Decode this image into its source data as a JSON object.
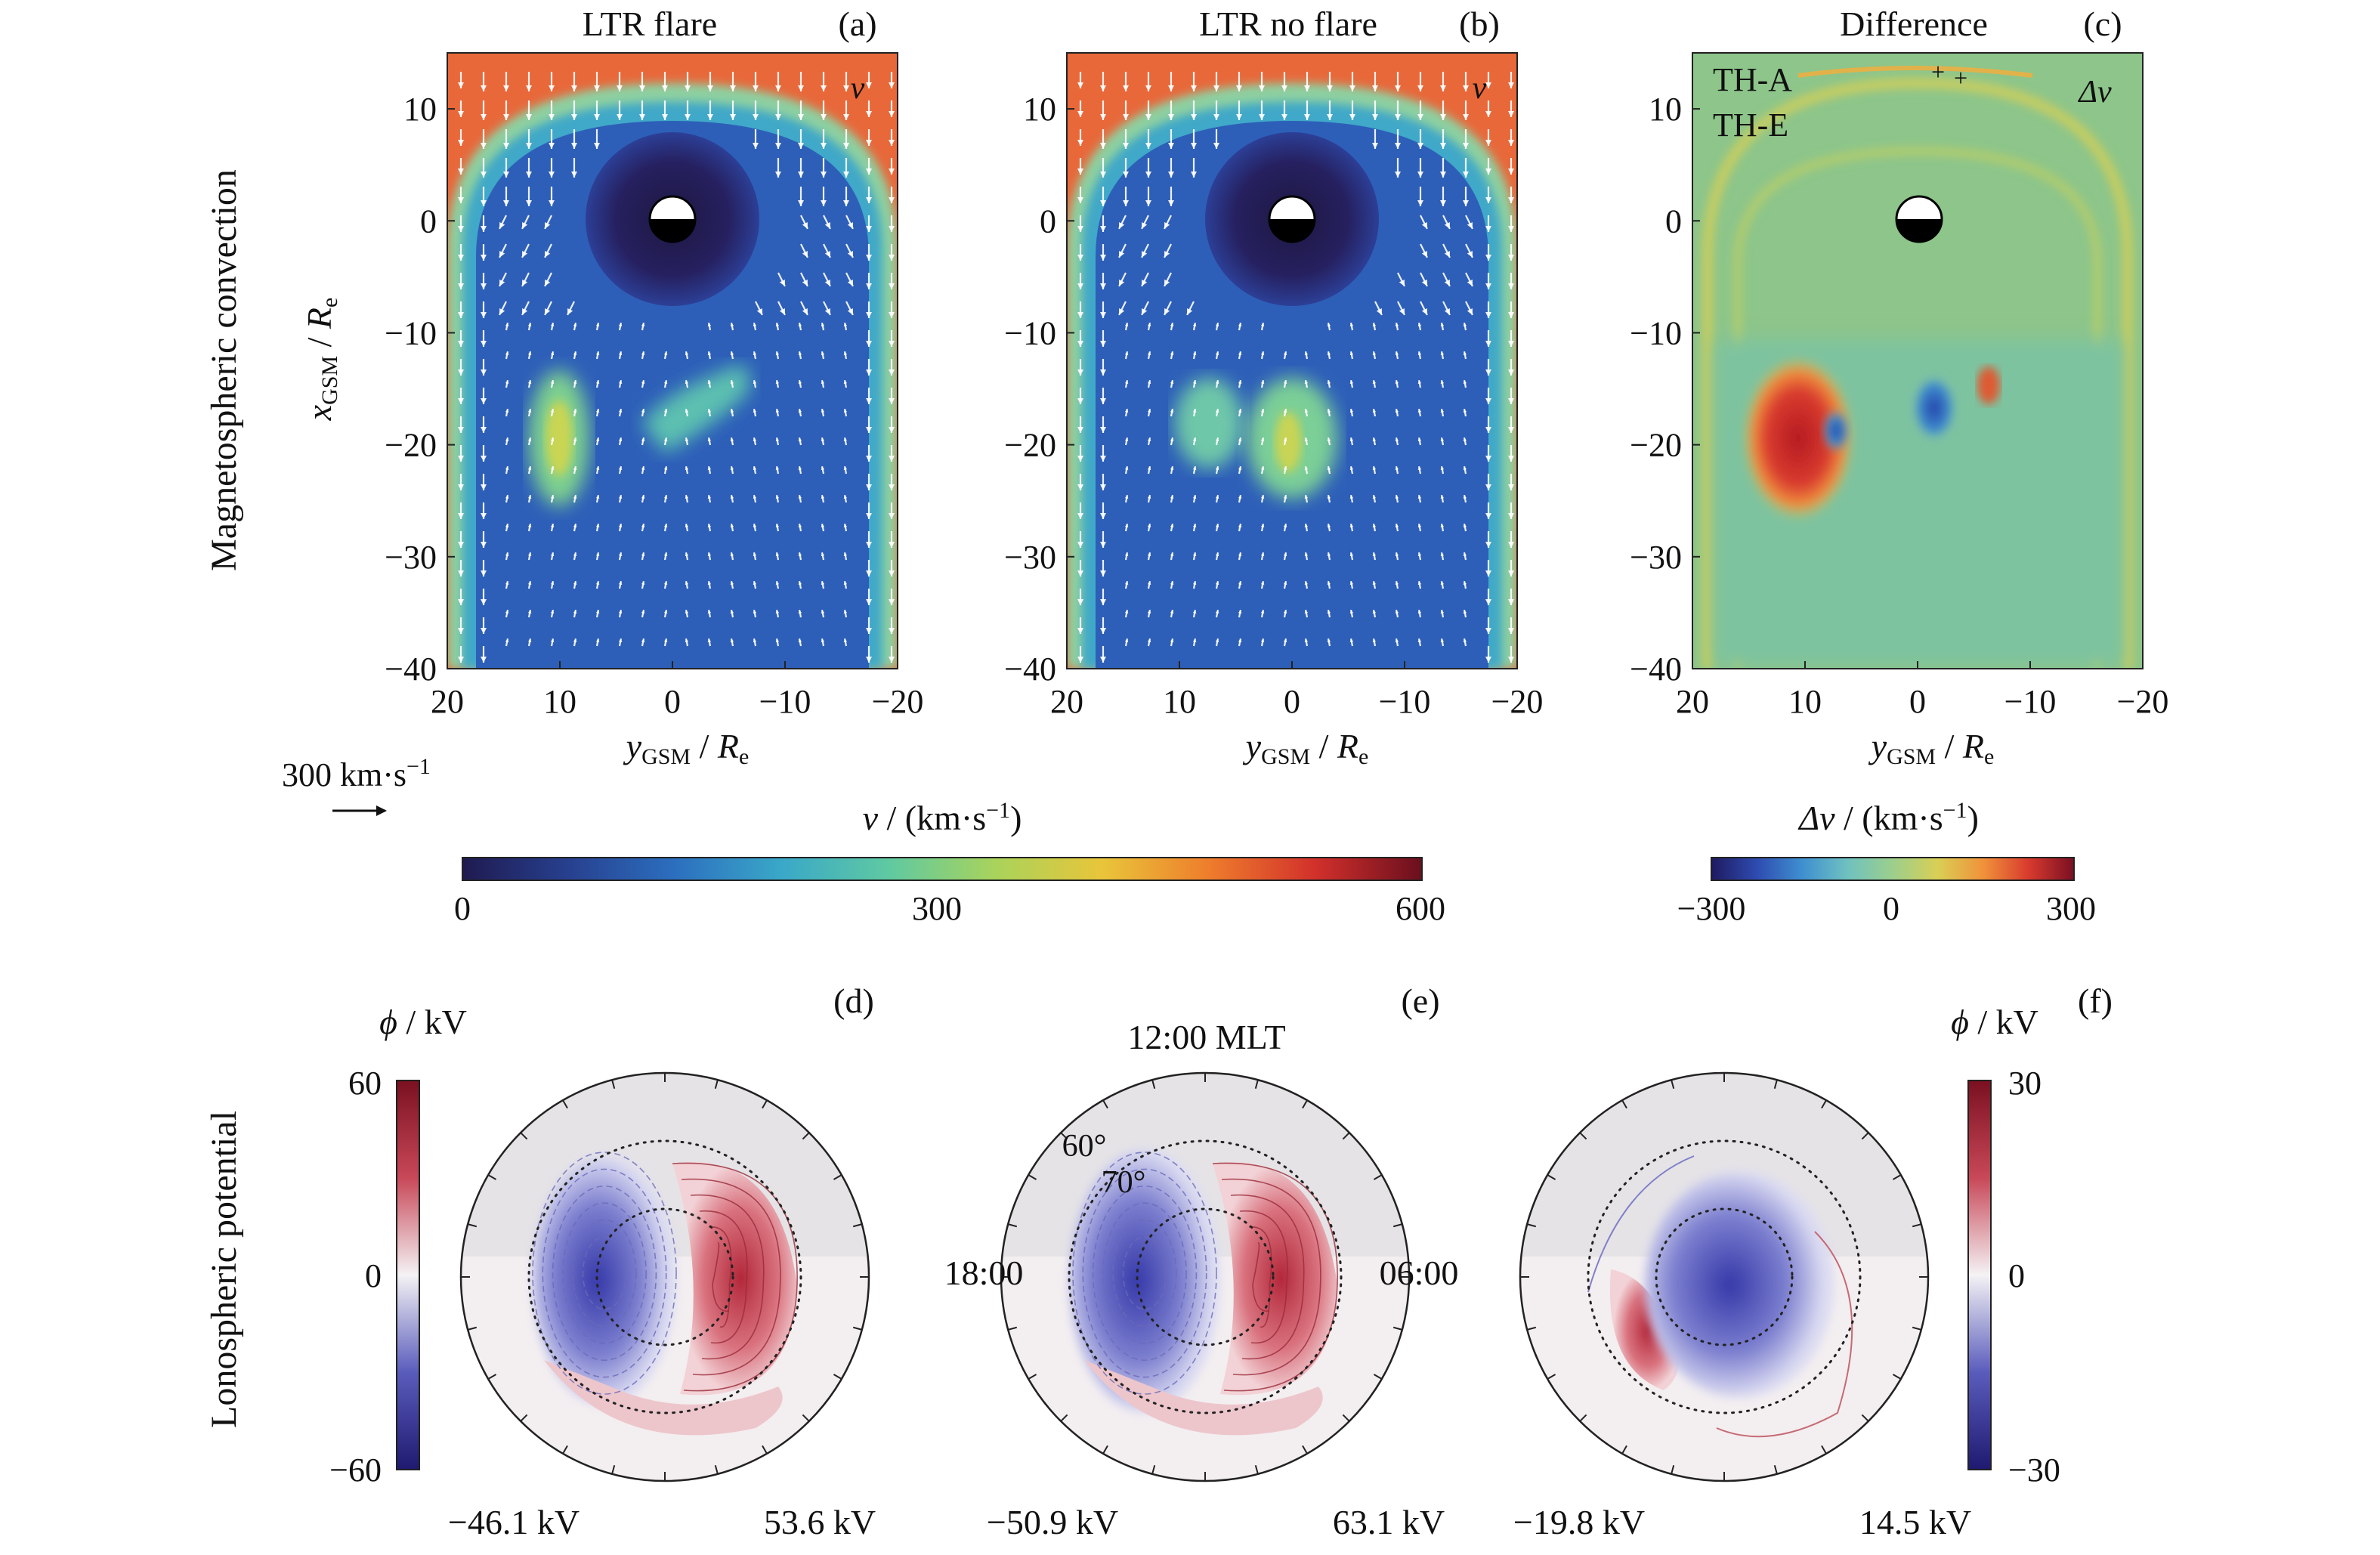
{
  "side_labels": {
    "top": "Magnetospheric convection",
    "bottom": "Lonospheric potential"
  },
  "panels_top": [
    {
      "id": "a",
      "title": "LTR flare",
      "letter": "(a)",
      "var": "v"
    },
    {
      "id": "b",
      "title": "LTR no flare",
      "letter": "(b)",
      "var": "v"
    },
    {
      "id": "c",
      "title": "Difference",
      "letter": "(c)",
      "var": "Δv"
    }
  ],
  "spacecraft": {
    "tha": "TH-A",
    "the": "TH-E"
  },
  "axes": {
    "x_ticks": [
      "20",
      "10",
      "0",
      "−10",
      "−20"
    ],
    "y_ticks": [
      "10",
      "0",
      "−10",
      "−20",
      "−30",
      "−40"
    ],
    "x_label": {
      "main": "y",
      "sub": "GSM",
      "rest": " / ",
      "re": "R",
      "re_sub": "e"
    },
    "y_label": {
      "main": "x",
      "sub": "GSM",
      "rest": " / ",
      "re": "R",
      "re_sub": "e"
    }
  },
  "arrow_scale": {
    "text": "300 km·s",
    "sup": "−1"
  },
  "colorbar_v": {
    "label": "v",
    "unit": " / (km·s",
    "sup": "−1",
    "close": ")",
    "ticks": [
      "0",
      "300",
      "600"
    ],
    "stops": [
      "#1f1a50",
      "#27408f",
      "#2c6fbf",
      "#3aa8c8",
      "#5fc9a2",
      "#a9d35b",
      "#e9c53a",
      "#ee7d2c",
      "#d2302b",
      "#6a0f1e"
    ]
  },
  "colorbar_dv": {
    "label": "Δv",
    "unit": " / (km·s",
    "sup": "−1",
    "close": ")",
    "ticks": [
      "−300",
      "0",
      "300"
    ],
    "stops": [
      "#1f1a60",
      "#2e4bb0",
      "#3f8fd0",
      "#6fc1c0",
      "#9ccf8c",
      "#d9cf55",
      "#f0923a",
      "#d83a2e",
      "#7a0f22"
    ]
  },
  "panels_bottom": [
    {
      "id": "d",
      "letter": "(d)",
      "min": "−46.1 kV",
      "max": "53.6 kV"
    },
    {
      "id": "e",
      "letter": "(e)",
      "min": "−50.9 kV",
      "max": "63.1 kV"
    },
    {
      "id": "f",
      "letter": "(f)",
      "min": "−19.8 kV",
      "max": "14.5 kV"
    }
  ],
  "polar_labels": {
    "noon": "12:00 MLT",
    "dusk": "18:00",
    "dawn": "06:00",
    "lat60": "60°",
    "lat70": "70°"
  },
  "phi_bar_left": {
    "label": "ϕ",
    "unit": " / kV",
    "ticks": [
      "60",
      "0",
      "−60"
    ]
  },
  "phi_bar_right": {
    "label": "ϕ",
    "unit": " / kV",
    "ticks": [
      "30",
      "0",
      "−30"
    ]
  },
  "chart_data": [
    {
      "type": "heatmap",
      "title": "LTR flare",
      "panel": "(a)",
      "xlabel": "yGSM / Re",
      "ylabel": "xGSM / Re",
      "xlim": [
        20,
        -20
      ],
      "ylim": [
        -40,
        15
      ],
      "colorbar": "v / (km·s−1)",
      "clim": [
        0,
        600
      ]
    },
    {
      "type": "heatmap",
      "title": "LTR no flare",
      "panel": "(b)",
      "xlabel": "yGSM / Re",
      "xlim": [
        20,
        -20
      ],
      "ylim": [
        -40,
        15
      ],
      "clim": [
        0,
        600
      ]
    },
    {
      "type": "heatmap",
      "title": "Difference",
      "panel": "(c)",
      "xlabel": "yGSM / Re",
      "xlim": [
        20,
        -20
      ],
      "ylim": [
        -40,
        15
      ],
      "colorbar": "Δv / (km·s−1)",
      "clim": [
        -300,
        300
      ]
    },
    {
      "type": "heatmap",
      "panel": "(d)",
      "colorbar": "ϕ / kV",
      "clim": [
        -60,
        60
      ],
      "min": -46.1,
      "max": 53.6
    },
    {
      "type": "heatmap",
      "panel": "(e)",
      "colorbar": "ϕ / kV",
      "clim": [
        -60,
        60
      ],
      "min": -50.9,
      "max": 63.1
    },
    {
      "type": "heatmap",
      "panel": "(f)",
      "colorbar": "ϕ / kV",
      "clim": [
        -30,
        30
      ],
      "min": -19.8,
      "max": 14.5
    }
  ]
}
